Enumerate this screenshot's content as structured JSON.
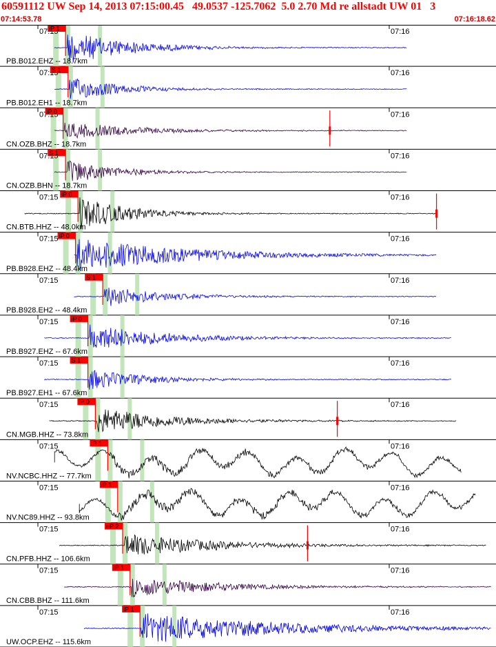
{
  "header": {
    "title": "60591112 UW Sep 14, 2013 07:15:00.45   49.0537 -125.7062  5.0 2.70 Md re allstadt UW 01   3",
    "start_time": "07:14:53.78",
    "end_time": "07:16:18.62"
  },
  "tick_labels": {
    "left": "07:15",
    "right": "07:16"
  },
  "colors": {
    "pick": "#ff0000",
    "window": "#b8e0b0",
    "blue_trace": "#0000ee",
    "black_trace": "#000000",
    "purple_trace": "#330044",
    "axis": "#000000"
  },
  "traces": [
    {
      "label": "PB.B012.EHZ -- 18.7km",
      "color": "blue",
      "pick": "iP 1",
      "s0": 0.11,
      "s1": 0.82,
      "onset": 0.135,
      "amp": 1.0,
      "decay": 0.12,
      "style": "quake"
    },
    {
      "label": "PB.B012.EH1 -- 18.7km",
      "color": "blue",
      "pick": "S 1",
      "s0": 0.11,
      "s1": 0.82,
      "onset": 0.14,
      "amp": 0.7,
      "decay": 0.1,
      "style": "quake"
    },
    {
      "label": "CN.OZB.BHZ -- 18.7km",
      "color": "purple",
      "pick": "iP 0",
      "s0": 0.11,
      "s1": 0.82,
      "onset": 0.13,
      "amp": 0.5,
      "decay": 0.15,
      "style": "quake",
      "tail_mark": 0.665
    },
    {
      "label": "CN.OZB.BHN -- 18.7km",
      "color": "purple",
      "pick": "S 1",
      "s0": 0.11,
      "s1": 0.82,
      "onset": 0.135,
      "amp": 0.7,
      "decay": 0.1,
      "style": "quake"
    },
    {
      "label": "CN.BTB.HHZ -- 48.0km",
      "color": "black",
      "pick": "iP 0",
      "s0": 0.05,
      "s1": 0.88,
      "onset": 0.16,
      "amp": 1.0,
      "decay": 0.1,
      "style": "quake",
      "tail_mark": 0.88
    },
    {
      "label": "PB.B928.EHZ -- 48.4km",
      "color": "blue",
      "pick": "iP 0",
      "s0": 0.15,
      "s1": 0.88,
      "onset": 0.155,
      "amp": 1.0,
      "decay": 0.22,
      "style": "quake"
    },
    {
      "label": "PB.B928.EH2 -- 48.4km",
      "color": "blue",
      "pick": "S 1",
      "s0": 0.15,
      "s1": 0.88,
      "onset": 0.21,
      "amp": 0.6,
      "decay": 0.12,
      "style": "quake"
    },
    {
      "label": "PB.B927.EHZ -- 67.6km",
      "color": "blue",
      "pick": "iP 0",
      "s0": 0.09,
      "s1": 0.91,
      "onset": 0.18,
      "amp": 0.8,
      "decay": 0.15,
      "style": "quake"
    },
    {
      "label": "PB.B927.EH1 -- 67.6km",
      "color": "blue",
      "pick": "S 1",
      "s0": 0.09,
      "s1": 0.91,
      "onset": 0.18,
      "amp": 0.6,
      "decay": 0.12,
      "style": "quake"
    },
    {
      "label": "CN.MGB.HHZ -- 73.8km",
      "color": "black",
      "pick": "iP 0",
      "s0": 0.1,
      "s1": 0.92,
      "onset": 0.195,
      "amp": 0.8,
      "decay": 0.15,
      "style": "quake",
      "tail_mark": 0.68
    },
    {
      "label": "NV.NCBC.HHZ -- 77.7km",
      "color": "black",
      "pick": "iP 1",
      "s0": 0.11,
      "s1": 0.93,
      "onset": 0.22,
      "amp": 0.8,
      "decay": 0.5,
      "style": "wavy"
    },
    {
      "label": "NV.NC89.HHZ -- 93.8km",
      "color": "black",
      "pick": "iP 1",
      "s0": 0.16,
      "s1": 0.96,
      "onset": 0.24,
      "amp": 0.9,
      "decay": 0.5,
      "style": "wavy"
    },
    {
      "label": "CN.PFB.HHZ -- 106.6km",
      "color": "black",
      "pick": "eP 2",
      "s0": 0.12,
      "s1": 0.98,
      "onset": 0.25,
      "amp": 0.7,
      "decay": 0.18,
      "style": "quake",
      "tail_mark": 0.62
    },
    {
      "label": "CN.CBB.BHZ -- 111.6km",
      "color": "purple",
      "pick": "iP 1",
      "s0": 0.13,
      "s1": 0.99,
      "onset": 0.265,
      "amp": 0.6,
      "decay": 0.18,
      "style": "quake"
    },
    {
      "label": "UW.OCP.EHZ -- 115.6km",
      "color": "blue",
      "pick": "iP 1",
      "s0": 0.17,
      "s1": 0.99,
      "onset": 0.285,
      "amp": 0.9,
      "decay": 0.28,
      "style": "quake"
    }
  ]
}
